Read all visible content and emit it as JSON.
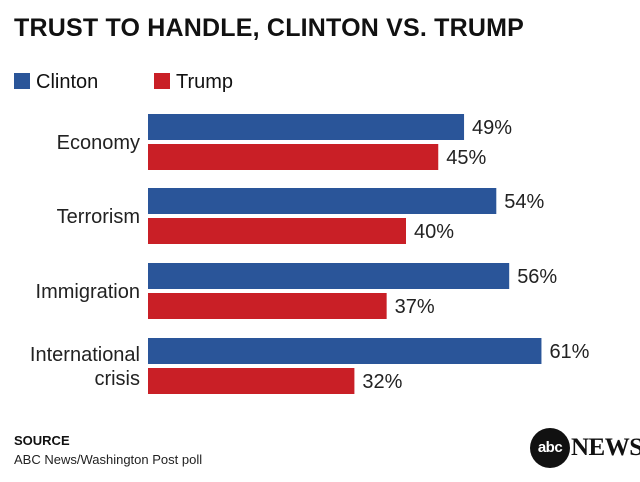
{
  "chart_data": {
    "type": "bar",
    "orientation": "horizontal",
    "title": "TRUST TO HANDLE, CLINTON VS. TRUMP",
    "categories": [
      [
        "Economy"
      ],
      [
        "Terrorism"
      ],
      [
        "Immigration"
      ],
      [
        "International",
        "crisis"
      ]
    ],
    "series": [
      {
        "name": "Clinton",
        "color": "#2a5599",
        "values": [
          49,
          54,
          56,
          61
        ],
        "labels": [
          "49%",
          "54%",
          "56%",
          "61%"
        ]
      },
      {
        "name": "Trump",
        "color": "#c91f26",
        "values": [
          45,
          40,
          37,
          32
        ],
        "labels": [
          "45%",
          "40%",
          "37%",
          "32%"
        ]
      }
    ],
    "value_unit": "%",
    "xlim": [
      0,
      100
    ],
    "grid": false,
    "legend_position": "top-left"
  },
  "source": {
    "heading": "SOURCE",
    "text": "ABC News/Washington Post poll"
  },
  "logo": {
    "disc_text": "abc",
    "word": "NEWS"
  }
}
